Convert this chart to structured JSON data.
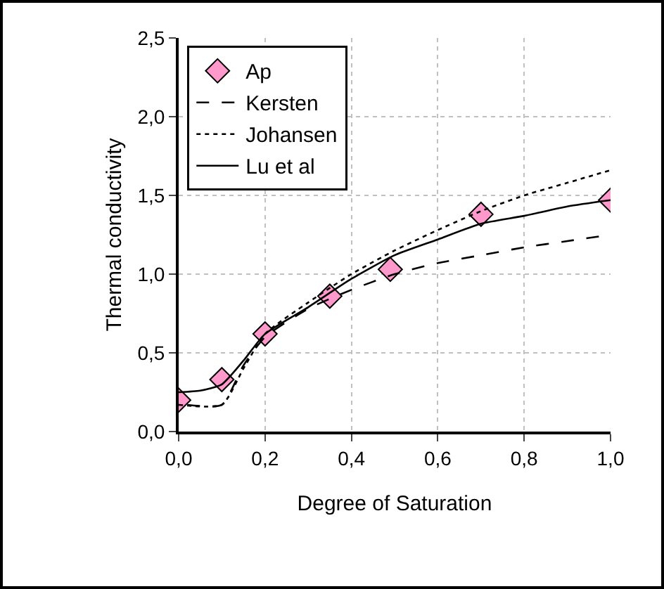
{
  "chart_data": {
    "type": "line",
    "xlabel": "Degree of Saturation",
    "ylabel": "Thermal conductivity",
    "xlim": [
      0,
      1
    ],
    "ylim": [
      0,
      2.5
    ],
    "xticks": [
      {
        "value": 0,
        "label": "0,0"
      },
      {
        "value": 0.2,
        "label": "0,2"
      },
      {
        "value": 0.4,
        "label": "0,4"
      },
      {
        "value": 0.6,
        "label": "0,6"
      },
      {
        "value": 0.8,
        "label": "0,8"
      },
      {
        "value": 1,
        "label": "1,0"
      }
    ],
    "yticks": [
      {
        "value": 0,
        "label": "0,0"
      },
      {
        "value": 0.5,
        "label": "0,5"
      },
      {
        "value": 1,
        "label": "1,0"
      },
      {
        "value": 1.5,
        "label": "1,5"
      },
      {
        "value": 2,
        "label": "2,0"
      },
      {
        "value": 2.5,
        "label": "2,5"
      }
    ],
    "grid": true,
    "legend": "top left",
    "series": [
      {
        "name": "Ap",
        "type": "scatter",
        "marker": "diamond",
        "color": "#ff99cc",
        "x": [
          0,
          0.1,
          0.2,
          0.35,
          0.49,
          0.7,
          1.0
        ],
        "values": [
          0.2,
          0.33,
          0.62,
          0.86,
          1.03,
          1.38,
          1.47
        ]
      },
      {
        "name": "Kersten",
        "line_style": "dashed",
        "color": "#000000",
        "x": [
          0.02,
          0.1,
          0.15,
          0.2,
          0.3,
          0.4,
          0.5,
          0.6,
          0.7,
          0.8,
          0.9,
          1.0
        ],
        "values": [
          0.17,
          0.17,
          0.42,
          0.6,
          0.78,
          0.9,
          1.0,
          1.07,
          1.12,
          1.17,
          1.21,
          1.25
        ]
      },
      {
        "name": "Johansen",
        "line_style": "dotted",
        "color": "#000000",
        "x": [
          0,
          0.1,
          0.15,
          0.2,
          0.3,
          0.4,
          0.5,
          0.6,
          0.7,
          0.8,
          0.9,
          1.0
        ],
        "values": [
          0.17,
          0.17,
          0.4,
          0.62,
          0.82,
          1.0,
          1.15,
          1.28,
          1.4,
          1.5,
          1.58,
          1.66
        ]
      },
      {
        "name": "Lu et al",
        "line_style": "solid",
        "color": "#000000",
        "x": [
          0,
          0.05,
          0.1,
          0.15,
          0.2,
          0.3,
          0.4,
          0.5,
          0.6,
          0.7,
          0.8,
          0.9,
          1.0
        ],
        "values": [
          0.25,
          0.26,
          0.3,
          0.45,
          0.62,
          0.79,
          0.97,
          1.12,
          1.22,
          1.32,
          1.37,
          1.43,
          1.47
        ]
      }
    ]
  }
}
